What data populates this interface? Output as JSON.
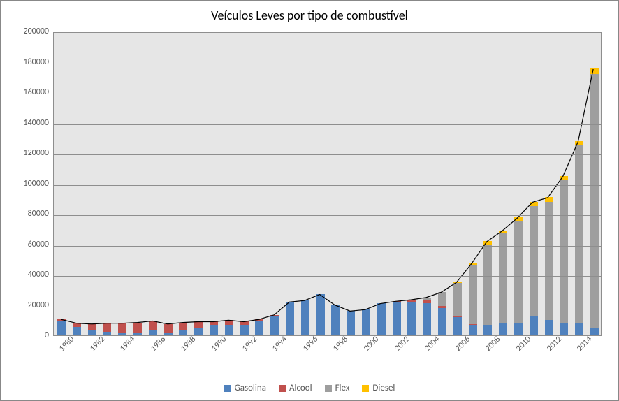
{
  "chart": {
    "type": "stacked-bar-with-line",
    "title": "Veículos Leves por tipo de combustível",
    "title_fontsize": 18,
    "background_color": "#ffffff",
    "plot_background_color": "#e6e6e6",
    "grid_color": "#8e8e8e",
    "border_color": "#888888",
    "axis_label_color": "#595959",
    "axis_fontsize": 12,
    "legend_fontsize": 13,
    "ylim": [
      0,
      200000
    ],
    "ytick_step": 20000,
    "yticks": [
      0,
      20000,
      40000,
      60000,
      80000,
      100000,
      120000,
      140000,
      160000,
      180000,
      200000
    ],
    "years": [
      1980,
      1981,
      1982,
      1983,
      1984,
      1985,
      1986,
      1987,
      1988,
      1989,
      1990,
      1991,
      1992,
      1993,
      1994,
      1995,
      1996,
      1997,
      1998,
      1999,
      2000,
      2001,
      2002,
      2003,
      2004,
      2005,
      2006,
      2007,
      2008,
      2009,
      2010,
      2011,
      2012,
      2013,
      2014,
      2015
    ],
    "x_tick_every": 2,
    "bar_width_ratio": 0.55,
    "series": [
      {
        "name": "Gasolina",
        "color": "#4f81bd",
        "data": [
          9000,
          5500,
          3500,
          2500,
          2000,
          2000,
          3500,
          2000,
          3000,
          5000,
          7000,
          7000,
          7000,
          9500,
          13000,
          22000,
          23000,
          27000,
          20000,
          16000,
          17000,
          21000,
          22000,
          22000,
          21000,
          18000,
          12000,
          7000,
          7000,
          8000,
          8000,
          13000,
          10000,
          8000,
          8000,
          5000
        ]
      },
      {
        "name": "Alcool",
        "color": "#c0504d",
        "data": [
          1500,
          2500,
          4000,
          5500,
          6000,
          6500,
          6000,
          5500,
          5500,
          4000,
          2000,
          3000,
          2000,
          1000,
          500,
          0,
          0,
          0,
          0,
          0,
          0,
          0,
          500,
          1500,
          2000,
          1500,
          500,
          500,
          0,
          0,
          0,
          0,
          0,
          0,
          0,
          0
        ]
      },
      {
        "name": "Flex",
        "color": "#9e9e9e",
        "data": [
          0,
          0,
          0,
          0,
          0,
          0,
          0,
          0,
          0,
          0,
          0,
          0,
          0,
          0,
          0,
          0,
          0,
          0,
          0,
          0,
          0,
          0,
          0,
          0,
          2000,
          9000,
          22000,
          39000,
          53000,
          59000,
          67000,
          72000,
          78000,
          94000,
          117000,
          167000
        ]
      },
      {
        "name": "Diesel",
        "color": "#ffc000",
        "data": [
          0,
          0,
          0,
          0,
          0,
          0,
          0,
          0,
          0,
          0,
          0,
          0,
          0,
          0,
          0,
          0,
          0,
          0,
          0,
          0,
          0,
          0,
          0,
          0,
          0,
          0,
          500,
          1000,
          2000,
          2000,
          2500,
          3000,
          3000,
          3000,
          3000,
          4000
        ]
      }
    ],
    "overlay_line": {
      "color": "#000000",
      "width": 1.2,
      "tracks_total": true
    },
    "legend_items": [
      {
        "label": "Gasolina",
        "color": "#4f81bd"
      },
      {
        "label": "Alcool",
        "color": "#c0504d"
      },
      {
        "label": "Flex",
        "color": "#9e9e9e"
      },
      {
        "label": "Diesel",
        "color": "#ffc000"
      }
    ]
  }
}
